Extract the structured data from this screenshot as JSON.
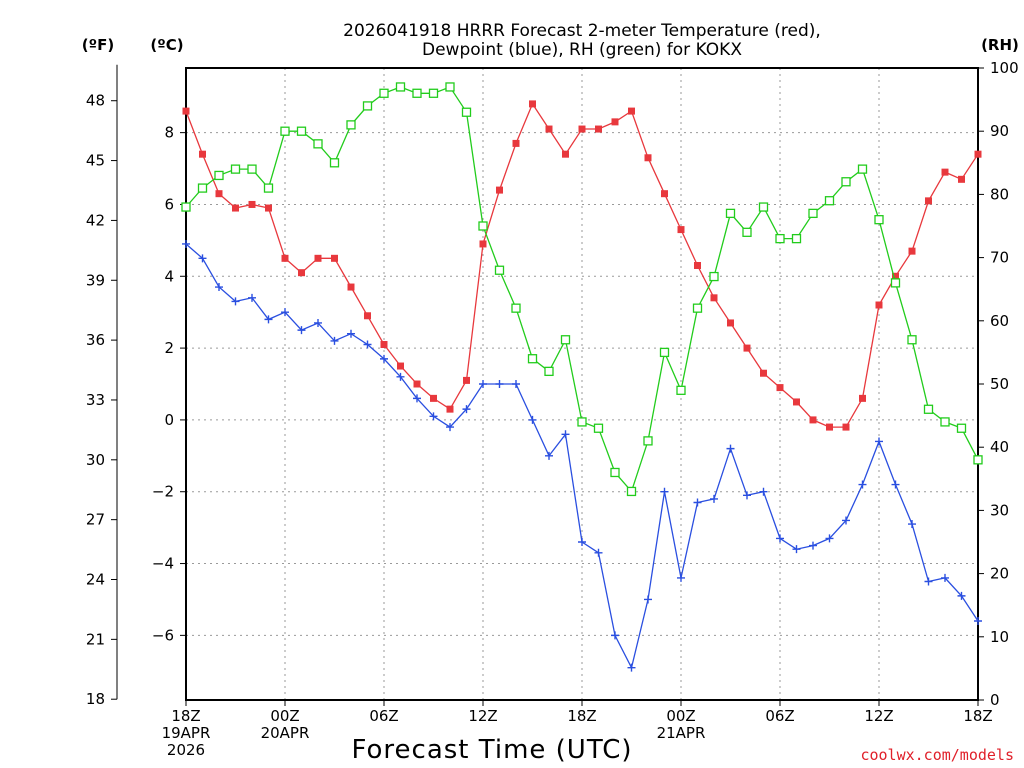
{
  "chart_data": {
    "type": "line",
    "title_line1": "2026041918 HRRR Forecast 2-meter Temperature (red),",
    "title_line2": "Dewpoint (blue), RH (green) for KOKX",
    "xlabel": "Forecast Time (UTC)",
    "credit": "coolwx.com/models",
    "units": {
      "fahrenheit": "(ºF)",
      "celsius": "(ºC)",
      "rh": "(RH)"
    },
    "x": {
      "start_hour": 0,
      "end_hour": 48,
      "step_hours": 1
    },
    "x_ticks": [
      {
        "hour": 0,
        "lines": [
          "18Z",
          "19APR",
          "2026"
        ]
      },
      {
        "hour": 6,
        "lines": [
          "00Z",
          "20APR"
        ]
      },
      {
        "hour": 12,
        "lines": [
          "06Z"
        ]
      },
      {
        "hour": 18,
        "lines": [
          "12Z"
        ]
      },
      {
        "hour": 24,
        "lines": [
          "18Z"
        ]
      },
      {
        "hour": 30,
        "lines": [
          "00Z",
          "21APR"
        ]
      },
      {
        "hour": 36,
        "lines": [
          "06Z"
        ]
      },
      {
        "hour": 42,
        "lines": [
          "12Z"
        ]
      },
      {
        "hour": 48,
        "lines": [
          "18Z"
        ]
      }
    ],
    "ylim_celsius": [
      -7.8,
      9.8
    ],
    "ylim_rh": [
      0,
      100
    ],
    "celsius_ticks": [
      8,
      6,
      4,
      2,
      0,
      -2,
      -4,
      -6
    ],
    "fahrenheit_ticks": [
      48,
      45,
      42,
      39,
      36,
      33,
      30,
      27,
      24,
      21,
      18
    ],
    "rh_ticks": [
      100,
      90,
      80,
      70,
      60,
      50,
      40,
      30,
      20,
      10,
      0
    ],
    "grid": true,
    "series": [
      {
        "name": "Temperature",
        "color": "#e8383d",
        "marker": "filled-square",
        "axis": "celsius",
        "values": [
          8.6,
          7.4,
          6.3,
          5.9,
          6.0,
          5.9,
          4.5,
          4.1,
          4.5,
          4.5,
          3.7,
          2.9,
          2.1,
          1.5,
          1.0,
          0.6,
          0.3,
          1.1,
          4.9,
          6.4,
          7.7,
          8.8,
          8.1,
          7.4,
          8.1,
          8.1,
          8.3,
          8.6,
          7.3,
          6.3,
          5.3,
          4.3,
          3.4,
          2.7,
          2.0,
          1.3,
          0.9,
          0.5,
          0.0,
          -0.2,
          -0.2,
          0.6,
          3.2,
          4.0,
          4.7,
          6.1,
          6.9,
          6.7,
          7.4
        ]
      },
      {
        "name": "Dewpoint",
        "color": "#2a4fe0",
        "marker": "plus",
        "axis": "celsius",
        "values": [
          4.9,
          4.5,
          3.7,
          3.3,
          3.4,
          2.8,
          3.0,
          2.5,
          2.7,
          2.2,
          2.4,
          2.1,
          1.7,
          1.2,
          0.6,
          0.1,
          -0.2,
          0.3,
          1.0,
          1.0,
          1.0,
          0.0,
          -1.0,
          -0.4,
          -3.4,
          -3.7,
          -6.0,
          -6.9,
          -5.0,
          -2.0,
          -4.4,
          -2.3,
          -2.2,
          -0.8,
          -2.1,
          -2.0,
          -3.3,
          -3.6,
          -3.5,
          -3.3,
          -2.8,
          -1.8,
          -0.6,
          -1.8,
          -2.9,
          -4.5,
          -4.4,
          -4.9,
          -5.6
        ]
      },
      {
        "name": "RH",
        "color": "#22cc1c",
        "marker": "open-square",
        "axis": "rh",
        "values": [
          78,
          81,
          83,
          84,
          84,
          81,
          90,
          90,
          88,
          85,
          91,
          94,
          96,
          97,
          96,
          96,
          97,
          93,
          75,
          68,
          62,
          54,
          52,
          57,
          44,
          43,
          36,
          33,
          41,
          55,
          49,
          62,
          67,
          77,
          74,
          78,
          73,
          73,
          77,
          79,
          82,
          84,
          76,
          66,
          57,
          46,
          44,
          43,
          38
        ]
      }
    ]
  }
}
